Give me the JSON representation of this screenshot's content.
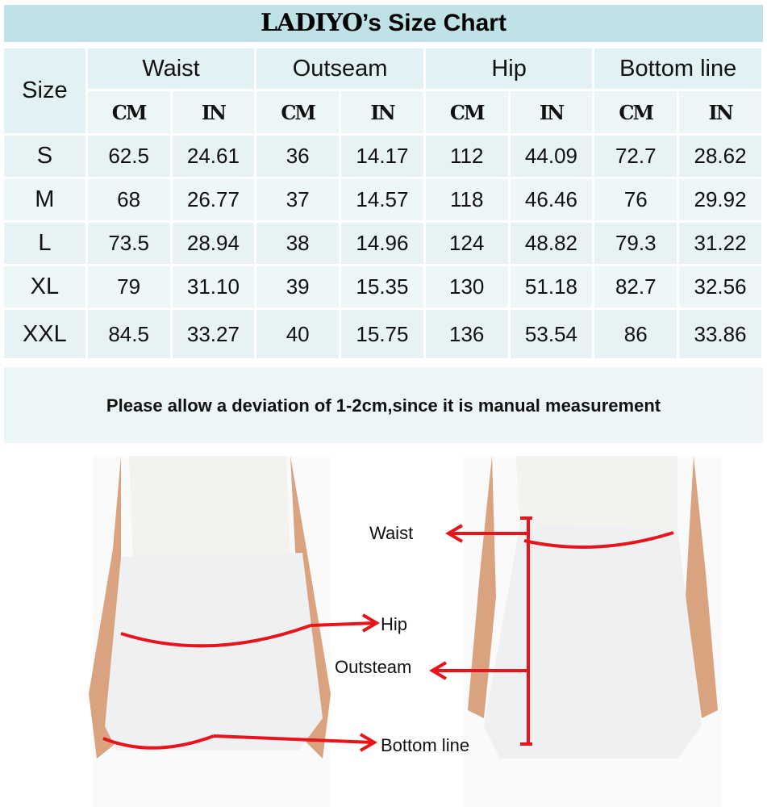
{
  "title": {
    "brand": "LADIYO",
    "rest": "’s Size Chart"
  },
  "headers": {
    "size": "Size",
    "groups": [
      "Waist",
      "Outseam",
      "Hip",
      "Bottom line"
    ],
    "units": [
      "CM",
      "IN"
    ]
  },
  "rows": [
    {
      "size": "S",
      "values": [
        "62.5",
        "24.61",
        "36",
        "14.17",
        "112",
        "44.09",
        "72.7",
        "28.62"
      ]
    },
    {
      "size": "M",
      "values": [
        "68",
        "26.77",
        "37",
        "14.57",
        "118",
        "46.46",
        "76",
        "29.92"
      ]
    },
    {
      "size": "L",
      "values": [
        "73.5",
        "28.94",
        "38",
        "14.96",
        "124",
        "48.82",
        "79.3",
        "31.22"
      ]
    },
    {
      "size": "XL",
      "values": [
        "79",
        "31.10",
        "39",
        "15.35",
        "130",
        "51.18",
        "82.7",
        "32.56"
      ]
    },
    {
      "size": "XXL",
      "values": [
        "84.5",
        "33.27",
        "40",
        "15.75",
        "136",
        "53.54",
        "86",
        "33.86"
      ]
    }
  ],
  "note": "Please allow a deviation of 1-2cm,since it is manual measurement",
  "diagram_labels": {
    "waist": "Waist",
    "hip": "Hip",
    "outseam": "Outsteam",
    "bottom": "Bottom line"
  },
  "colors": {
    "title_bg": "#bfe2e6",
    "cell_bg": "#e6f2f4",
    "marker": "#e8141b"
  }
}
